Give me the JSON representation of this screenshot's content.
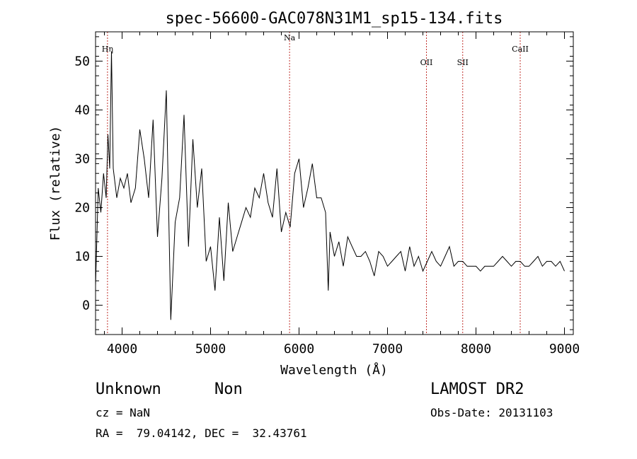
{
  "chart_data": {
    "type": "line",
    "title": "spec-56600-GAC078N31M1_sp15-134.fits",
    "xlabel": "Wavelength (Å)",
    "ylabel": "Flux (relative)",
    "xlim": [
      3700,
      9100
    ],
    "ylim": [
      -6,
      56
    ],
    "xticks": [
      4000,
      5000,
      6000,
      7000,
      8000,
      9000
    ],
    "yticks": [
      0,
      10,
      20,
      30,
      40,
      50
    ],
    "grid": false,
    "lines": [
      {
        "label": "Hη",
        "x": 3835
      },
      {
        "label": "Na",
        "x": 5893
      },
      {
        "label": "OII",
        "x": 7440
      },
      {
        "label": "SII",
        "x": 7850
      },
      {
        "label": "CaII",
        "x": 8500
      }
    ],
    "series": [
      {
        "x": [
          3700,
          3730,
          3760,
          3790,
          3820,
          3840,
          3860,
          3880,
          3900,
          3940,
          3980,
          4020,
          4060,
          4100,
          4150,
          4200,
          4250,
          4300,
          4350,
          4400,
          4450,
          4500,
          4550,
          4600,
          4650,
          4700,
          4750,
          4800,
          4850,
          4900,
          4950,
          5000,
          5050,
          5100,
          5150,
          5200,
          5250,
          5300,
          5350,
          5400,
          5450,
          5500,
          5550,
          5600,
          5650,
          5700,
          5750,
          5800,
          5850,
          5900,
          5950,
          6000,
          6050,
          6100,
          6150,
          6200,
          6250,
          6300,
          6330,
          6350,
          6400,
          6450,
          6500,
          6550,
          6600,
          6650,
          6700,
          6750,
          6800,
          6850,
          6900,
          6950,
          7000,
          7050,
          7100,
          7150,
          7200,
          7250,
          7300,
          7350,
          7400,
          7450,
          7500,
          7550,
          7600,
          7650,
          7700,
          7750,
          7800,
          7850,
          7900,
          7950,
          8000,
          8050,
          8100,
          8150,
          8200,
          8250,
          8300,
          8350,
          8400,
          8450,
          8500,
          8550,
          8600,
          8650,
          8700,
          8750,
          8800,
          8850,
          8900,
          8950,
          9000
        ],
        "y": [
          4,
          24,
          19,
          27,
          22,
          35,
          28,
          52,
          28,
          22,
          26,
          24,
          27,
          21,
          24,
          36,
          30,
          22,
          38,
          14,
          26,
          44,
          -3,
          17,
          22,
          39,
          12,
          34,
          20,
          28,
          9,
          12,
          3,
          18,
          5,
          21,
          11,
          14,
          17,
          20,
          18,
          24,
          22,
          27,
          21,
          18,
          28,
          15,
          19,
          16,
          27,
          30,
          20,
          24,
          29,
          22,
          22,
          19,
          3,
          15,
          10,
          13,
          8,
          14,
          12,
          10,
          10,
          11,
          9,
          6,
          11,
          10,
          8,
          9,
          10,
          11,
          7,
          12,
          8,
          10,
          7,
          9,
          11,
          9,
          8,
          10,
          12,
          8,
          9,
          9,
          8,
          8,
          8,
          7,
          8,
          8,
          8,
          9,
          10,
          9,
          8,
          9,
          9,
          8,
          8,
          9,
          10,
          8,
          9,
          9,
          8,
          9,
          7
        ]
      }
    ]
  },
  "info": {
    "class_name": "Unknown",
    "subclass": "Non",
    "survey": "LAMOST DR2",
    "cz": "cz = NaN",
    "obs_date": "Obs-Date: 20131103",
    "coords": "RA =  79.04142, DEC =  32.43761"
  }
}
